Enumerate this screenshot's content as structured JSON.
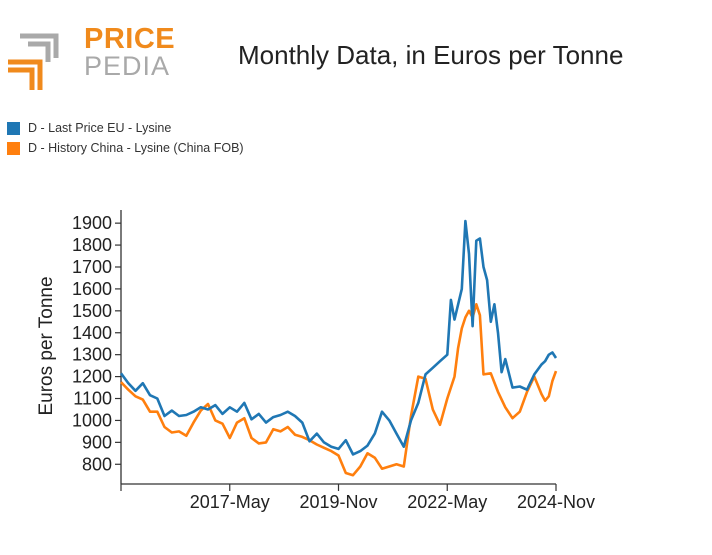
{
  "logo": {
    "top_text": "PRICE",
    "bottom_text": "PEDIA",
    "colors": {
      "orange": "#f08a1c",
      "gray": "#a9a9a9"
    }
  },
  "chart_data": {
    "type": "line",
    "title": "Monthly Data, in Euros per Tonne",
    "xlabel": "",
    "ylabel": "Euros per Tonne",
    "ylim": [
      710,
      1960
    ],
    "yticks": [
      800,
      900,
      1000,
      1100,
      1200,
      1300,
      1400,
      1500,
      1600,
      1700,
      1800,
      1900
    ],
    "xrange": [
      "2014-11",
      "2024-11"
    ],
    "xticks": [
      "2017-05",
      "2019-11",
      "2022-05",
      "2024-11"
    ],
    "xtick_labels": [
      "2017-May",
      "2019-Nov",
      "2022-May",
      "2024-Nov"
    ],
    "legend_position": "top-left",
    "series": [
      {
        "name": "D - Last Price EU - Lysine",
        "color": "#1f77b4",
        "points": [
          [
            "2014-11",
            1215
          ],
          [
            "2015-01",
            1170
          ],
          [
            "2015-03",
            1135
          ],
          [
            "2015-05",
            1170
          ],
          [
            "2015-07",
            1115
          ],
          [
            "2015-09",
            1100
          ],
          [
            "2015-11",
            1020
          ],
          [
            "2016-01",
            1045
          ],
          [
            "2016-03",
            1020
          ],
          [
            "2016-05",
            1025
          ],
          [
            "2016-07",
            1040
          ],
          [
            "2016-09",
            1060
          ],
          [
            "2016-11",
            1050
          ],
          [
            "2017-01",
            1070
          ],
          [
            "2017-03",
            1030
          ],
          [
            "2017-05",
            1060
          ],
          [
            "2017-07",
            1040
          ],
          [
            "2017-09",
            1080
          ],
          [
            "2017-11",
            1005
          ],
          [
            "2018-01",
            1030
          ],
          [
            "2018-03",
            990
          ],
          [
            "2018-05",
            1015
          ],
          [
            "2018-07",
            1025
          ],
          [
            "2018-09",
            1040
          ],
          [
            "2018-11",
            1020
          ],
          [
            "2019-01",
            990
          ],
          [
            "2019-03",
            905
          ],
          [
            "2019-05",
            940
          ],
          [
            "2019-07",
            900
          ],
          [
            "2019-09",
            880
          ],
          [
            "2019-11",
            870
          ],
          [
            "2020-01",
            910
          ],
          [
            "2020-03",
            845
          ],
          [
            "2020-05",
            860
          ],
          [
            "2020-07",
            885
          ],
          [
            "2020-09",
            940
          ],
          [
            "2020-11",
            1040
          ],
          [
            "2021-01",
            1000
          ],
          [
            "2021-03",
            940
          ],
          [
            "2021-05",
            880
          ],
          [
            "2021-07",
            1000
          ],
          [
            "2021-09",
            1080
          ],
          [
            "2021-11",
            1210
          ],
          [
            "2022-01",
            1240
          ],
          [
            "2022-03",
            1270
          ],
          [
            "2022-05",
            1300
          ],
          [
            "2022-06",
            1550
          ],
          [
            "2022-07",
            1460
          ],
          [
            "2022-09",
            1600
          ],
          [
            "2022-10",
            1910
          ],
          [
            "2022-11",
            1760
          ],
          [
            "2022-12",
            1430
          ],
          [
            "2023-01",
            1820
          ],
          [
            "2023-02",
            1830
          ],
          [
            "2023-03",
            1700
          ],
          [
            "2023-04",
            1640
          ],
          [
            "2023-05",
            1450
          ],
          [
            "2023-06",
            1530
          ],
          [
            "2023-07",
            1400
          ],
          [
            "2023-08",
            1220
          ],
          [
            "2023-09",
            1280
          ],
          [
            "2023-11",
            1150
          ],
          [
            "2024-01",
            1155
          ],
          [
            "2024-03",
            1140
          ],
          [
            "2024-05",
            1210
          ],
          [
            "2024-07",
            1255
          ],
          [
            "2024-08",
            1270
          ],
          [
            "2024-09",
            1300
          ],
          [
            "2024-10",
            1310
          ],
          [
            "2024-11",
            1285
          ]
        ]
      },
      {
        "name": "D - History China - Lysine (China FOB)",
        "color": "#ff7f0e",
        "points": [
          [
            "2014-11",
            1175
          ],
          [
            "2015-01",
            1140
          ],
          [
            "2015-03",
            1110
          ],
          [
            "2015-05",
            1095
          ],
          [
            "2015-07",
            1040
          ],
          [
            "2015-09",
            1040
          ],
          [
            "2015-11",
            970
          ],
          [
            "2016-01",
            945
          ],
          [
            "2016-03",
            950
          ],
          [
            "2016-05",
            930
          ],
          [
            "2016-07",
            990
          ],
          [
            "2016-09",
            1045
          ],
          [
            "2016-11",
            1075
          ],
          [
            "2017-01",
            1000
          ],
          [
            "2017-03",
            985
          ],
          [
            "2017-05",
            920
          ],
          [
            "2017-07",
            990
          ],
          [
            "2017-09",
            1010
          ],
          [
            "2017-11",
            920
          ],
          [
            "2018-01",
            895
          ],
          [
            "2018-03",
            900
          ],
          [
            "2018-05",
            960
          ],
          [
            "2018-07",
            950
          ],
          [
            "2018-09",
            970
          ],
          [
            "2018-11",
            935
          ],
          [
            "2019-01",
            925
          ],
          [
            "2019-03",
            910
          ],
          [
            "2019-05",
            890
          ],
          [
            "2019-07",
            875
          ],
          [
            "2019-09",
            860
          ],
          [
            "2019-11",
            840
          ],
          [
            "2020-01",
            760
          ],
          [
            "2020-03",
            750
          ],
          [
            "2020-05",
            790
          ],
          [
            "2020-07",
            850
          ],
          [
            "2020-09",
            830
          ],
          [
            "2020-11",
            780
          ],
          [
            "2021-01",
            790
          ],
          [
            "2021-03",
            800
          ],
          [
            "2021-05",
            790
          ],
          [
            "2021-07",
            1020
          ],
          [
            "2021-09",
            1200
          ],
          [
            "2021-11",
            1190
          ],
          [
            "2022-01",
            1050
          ],
          [
            "2022-03",
            980
          ],
          [
            "2022-05",
            1100
          ],
          [
            "2022-07",
            1200
          ],
          [
            "2022-08",
            1330
          ],
          [
            "2022-09",
            1420
          ],
          [
            "2022-10",
            1470
          ],
          [
            "2022-11",
            1500
          ],
          [
            "2022-12",
            1470
          ],
          [
            "2023-01",
            1530
          ],
          [
            "2023-02",
            1480
          ],
          [
            "2023-03",
            1210
          ],
          [
            "2023-05",
            1215
          ],
          [
            "2023-07",
            1130
          ],
          [
            "2023-09",
            1060
          ],
          [
            "2023-11",
            1010
          ],
          [
            "2024-01",
            1040
          ],
          [
            "2024-03",
            1130
          ],
          [
            "2024-05",
            1200
          ],
          [
            "2024-07",
            1120
          ],
          [
            "2024-08",
            1090
          ],
          [
            "2024-09",
            1110
          ],
          [
            "2024-10",
            1180
          ],
          [
            "2024-11",
            1225
          ]
        ]
      }
    ]
  }
}
